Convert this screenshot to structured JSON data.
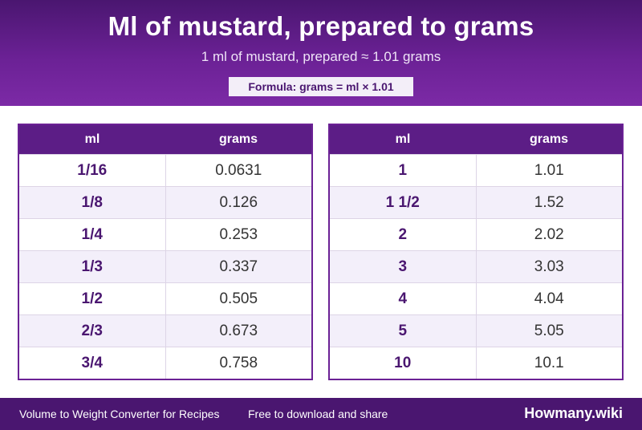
{
  "header": {
    "title": "Ml of mustard, prepared to grams",
    "subtitle": "1 ml of mustard, prepared ≈ 1.01 grams",
    "formula": "Formula: grams = ml × 1.01"
  },
  "tables": [
    {
      "col_ml": "ml",
      "col_grams": "grams",
      "rows": [
        {
          "ml": "1/16",
          "grams": "0.0631"
        },
        {
          "ml": "1/8",
          "grams": "0.126"
        },
        {
          "ml": "1/4",
          "grams": "0.253"
        },
        {
          "ml": "1/3",
          "grams": "0.337"
        },
        {
          "ml": "1/2",
          "grams": "0.505"
        },
        {
          "ml": "2/3",
          "grams": "0.673"
        },
        {
          "ml": "3/4",
          "grams": "0.758"
        }
      ]
    },
    {
      "col_ml": "ml",
      "col_grams": "grams",
      "rows": [
        {
          "ml": "1",
          "grams": "1.01"
        },
        {
          "ml": "1 1/2",
          "grams": "1.52"
        },
        {
          "ml": "2",
          "grams": "2.02"
        },
        {
          "ml": "3",
          "grams": "3.03"
        },
        {
          "ml": "4",
          "grams": "4.04"
        },
        {
          "ml": "5",
          "grams": "5.05"
        },
        {
          "ml": "10",
          "grams": "10.1"
        }
      ]
    }
  ],
  "footer": {
    "left_text": "Volume to Weight Converter for Recipes",
    "middle_text": "Free to download and share",
    "brand": "Howmany.wiki"
  },
  "colors": {
    "brand_purple": "#5c1d86",
    "row_alt": "#f3effa"
  }
}
